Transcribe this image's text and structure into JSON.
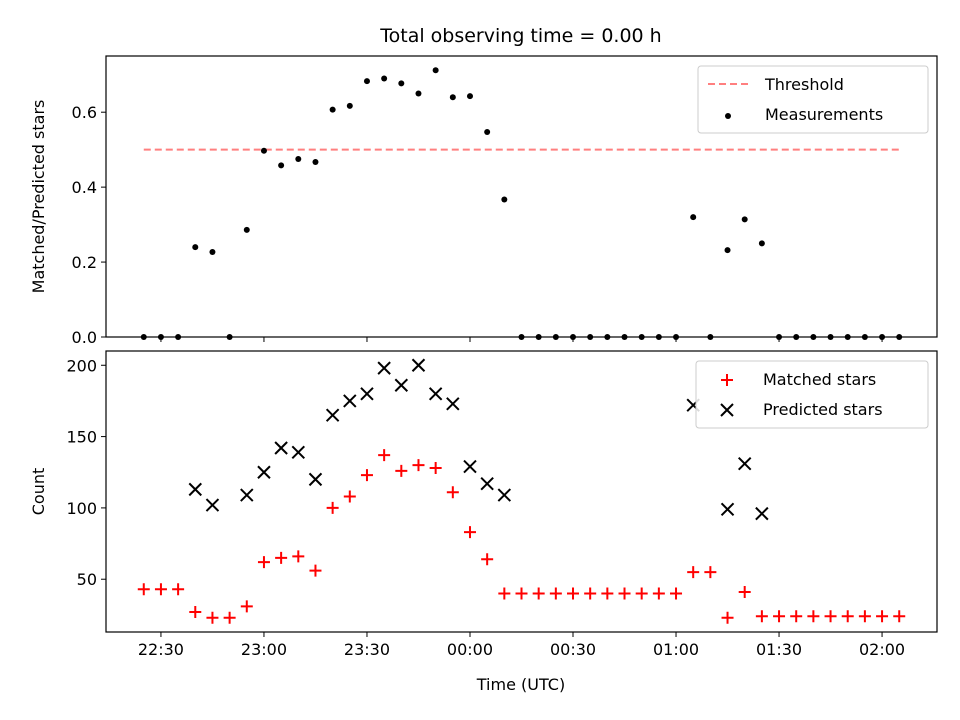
{
  "chart_data": {
    "type": "scatter",
    "title": "Total observing time = 0.00 h",
    "xlabel": "Time (UTC)",
    "x_ticks": [
      "22:30",
      "23:00",
      "23:30",
      "00:00",
      "00:30",
      "01:00",
      "01:30",
      "02:00"
    ],
    "x_tick_minutes": [
      0,
      30,
      60,
      90,
      120,
      150,
      180,
      210
    ],
    "x_range_minutes": [
      -16,
      226
    ],
    "x": [
      -5,
      0,
      5,
      10,
      15,
      20,
      25,
      30,
      35,
      40,
      45,
      50,
      55,
      60,
      65,
      70,
      75,
      80,
      85,
      90,
      95,
      100,
      105,
      110,
      115,
      120,
      125,
      130,
      135,
      140,
      145,
      150,
      155,
      160,
      165,
      170,
      175,
      180,
      185,
      190,
      195,
      200,
      205,
      210,
      215
    ],
    "x_labels": [
      "22:25",
      "22:30",
      "22:35",
      "22:40",
      "22:45",
      "22:50",
      "22:55",
      "23:00",
      "23:05",
      "23:10",
      "23:15",
      "23:20",
      "23:25",
      "23:30",
      "23:35",
      "23:40",
      "23:45",
      "23:50",
      "23:55",
      "00:00",
      "00:05",
      "00:10",
      "00:15",
      "00:20",
      "00:25",
      "00:30",
      "00:35",
      "00:40",
      "00:45",
      "00:50",
      "00:55",
      "01:00",
      "01:05",
      "01:10",
      "01:15",
      "01:20",
      "01:25",
      "01:30",
      "01:35",
      "01:40",
      "01:45",
      "01:50",
      "01:55",
      "02:00",
      "02:05"
    ],
    "top": {
      "ylabel": "Matched/Predicted stars",
      "ylim": [
        0,
        0.75
      ],
      "y_ticks": [
        0.0,
        0.2,
        0.4,
        0.6
      ],
      "y_tick_labels": [
        "0.0",
        "0.2",
        "0.4",
        "0.6"
      ],
      "threshold": {
        "name": "Threshold",
        "value": 0.5,
        "color": "#ff7f7f",
        "x_range": [
          -5,
          215
        ]
      },
      "series": [
        {
          "name": "Measurements",
          "color": "#000000",
          "marker": "dot",
          "values": [
            0.0,
            0.0,
            0.0,
            0.24,
            0.227,
            0.0,
            0.286,
            0.497,
            0.458,
            0.475,
            0.467,
            0.607,
            0.617,
            0.683,
            0.69,
            0.677,
            0.65,
            0.712,
            0.64,
            0.643,
            0.547,
            0.367,
            0.0,
            0.0,
            0.0,
            0.0,
            0.0,
            0.0,
            0.0,
            0.0,
            0.0,
            0.0,
            0.32,
            0.0,
            0.232,
            0.314,
            0.25,
            0.0,
            0.0,
            0.0,
            0.0,
            0.0,
            0.0,
            0.0,
            0.0
          ]
        }
      ],
      "legend": {
        "position": "top-right",
        "entries": [
          "Threshold",
          "Measurements"
        ]
      }
    },
    "bottom": {
      "ylabel": "Count",
      "ylim": [
        13,
        210
      ],
      "y_ticks": [
        50,
        100,
        150,
        200
      ],
      "y_tick_labels": [
        "50",
        "100",
        "150",
        "200"
      ],
      "series": [
        {
          "name": "Matched stars",
          "color": "#ff0000",
          "marker": "plus",
          "values": [
            43,
            43,
            43,
            27,
            23,
            23,
            31,
            62,
            65,
            66,
            56,
            100,
            108,
            123,
            137,
            126,
            130,
            128,
            111,
            83,
            64,
            40,
            40,
            40,
            40,
            40,
            40,
            40,
            40,
            40,
            40,
            40,
            55,
            55,
            23,
            41,
            24,
            24,
            24,
            24,
            24,
            24,
            24,
            24,
            24
          ]
        },
        {
          "name": "Predicted stars",
          "color": "#000000",
          "marker": "x",
          "values": [
            null,
            null,
            null,
            113,
            102,
            null,
            109,
            125,
            142,
            139,
            120,
            165,
            175,
            180,
            198,
            186,
            200,
            180,
            173,
            129,
            117,
            109,
            null,
            null,
            null,
            null,
            null,
            null,
            null,
            null,
            null,
            null,
            172,
            null,
            99,
            131,
            96,
            null,
            null,
            null,
            null,
            null,
            null,
            null,
            null
          ]
        }
      ],
      "legend": {
        "position": "top-right",
        "entries": [
          "Matched stars",
          "Predicted stars"
        ]
      }
    }
  }
}
